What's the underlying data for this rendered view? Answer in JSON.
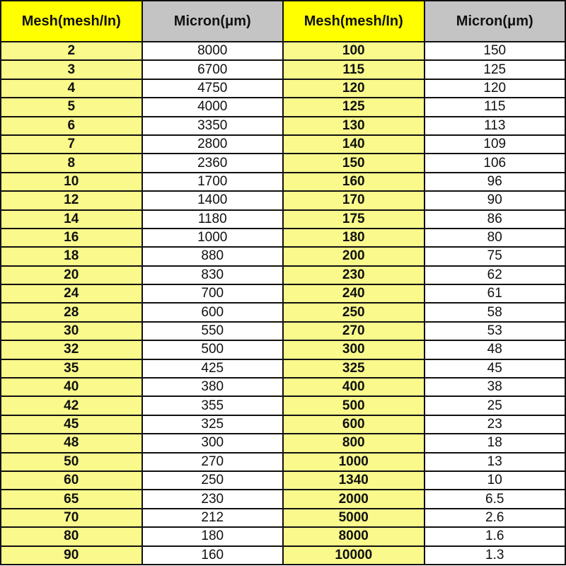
{
  "headers": [
    "Mesh(mesh/In)",
    "Micron(μm)",
    "Mesh(mesh/In)",
    "Micron(μm)"
  ],
  "colors": {
    "header_mesh": "#ffff00",
    "header_micron": "#c4c4c4",
    "mesh_cell": "#f9f98c",
    "micron_cell": "#ffffff"
  },
  "rows": [
    [
      "2",
      "8000",
      "100",
      "150"
    ],
    [
      "3",
      "6700",
      "115",
      "125"
    ],
    [
      "4",
      "4750",
      "120",
      "120"
    ],
    [
      "5",
      "4000",
      "125",
      "115"
    ],
    [
      "6",
      "3350",
      "130",
      "113"
    ],
    [
      "7",
      "2800",
      "140",
      "109"
    ],
    [
      "8",
      "2360",
      "150",
      "106"
    ],
    [
      "10",
      "1700",
      "160",
      "96"
    ],
    [
      "12",
      "1400",
      "170",
      "90"
    ],
    [
      "14",
      "1180",
      "175",
      "86"
    ],
    [
      "16",
      "1000",
      "180",
      "80"
    ],
    [
      "18",
      "880",
      "200",
      "75"
    ],
    [
      "20",
      "830",
      "230",
      "62"
    ],
    [
      "24",
      "700",
      "240",
      "61"
    ],
    [
      "28",
      "600",
      "250",
      "58"
    ],
    [
      "30",
      "550",
      "270",
      "53"
    ],
    [
      "32",
      "500",
      "300",
      "48"
    ],
    [
      "35",
      "425",
      "325",
      "45"
    ],
    [
      "40",
      "380",
      "400",
      "38"
    ],
    [
      "42",
      "355",
      "500",
      "25"
    ],
    [
      "45",
      "325",
      "600",
      "23"
    ],
    [
      "48",
      "300",
      "800",
      "18"
    ],
    [
      "50",
      "270",
      "1000",
      "13"
    ],
    [
      "60",
      "250",
      "1340",
      "10"
    ],
    [
      "65",
      "230",
      "2000",
      "6.5"
    ],
    [
      "70",
      "212",
      "5000",
      "2.6"
    ],
    [
      "80",
      "180",
      "8000",
      "1.6"
    ],
    [
      "90",
      "160",
      "10000",
      "1.3"
    ]
  ]
}
